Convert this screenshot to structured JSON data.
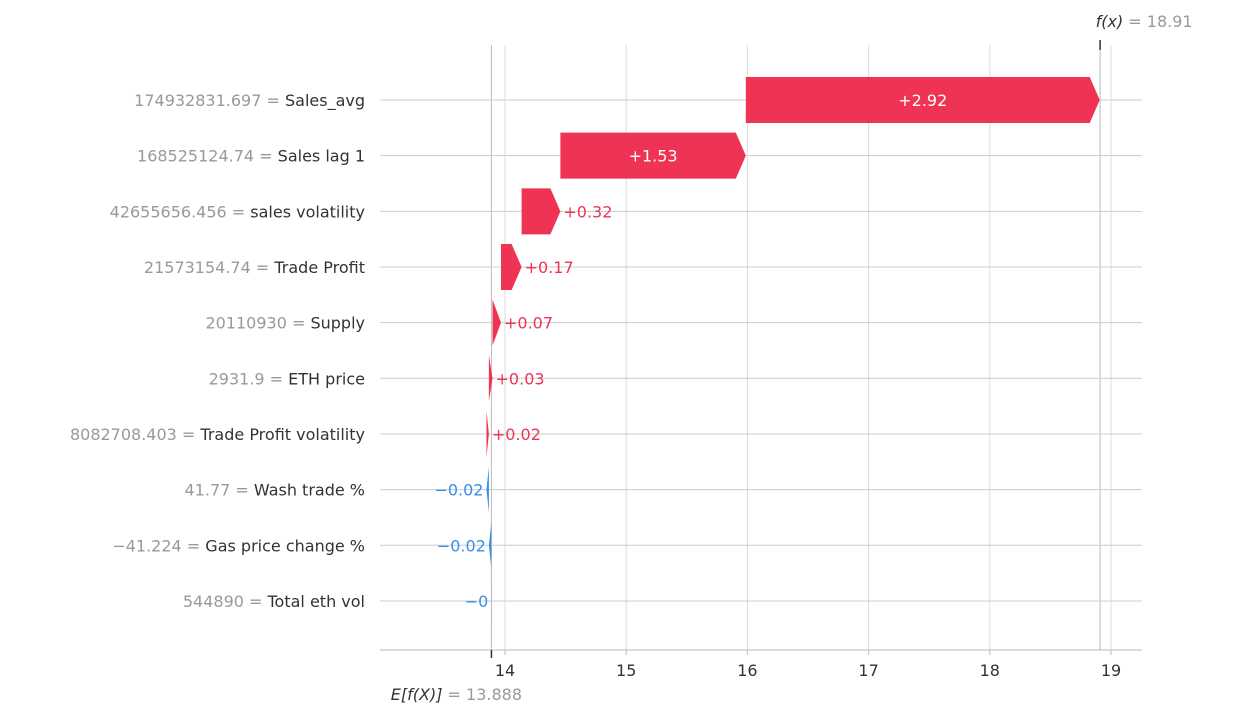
{
  "chart_data": {
    "type": "waterfall",
    "base_value": 13.888,
    "final_value": 18.91,
    "base_value_label": "13.888",
    "final_value_label": "18.91",
    "base_label_prefix": "E[f(X)]",
    "final_label_prefix": "f(x)",
    "equals": " = ",
    "xlim": [
      13.1,
      19.2
    ],
    "xticks": [
      14,
      15,
      16,
      17,
      18,
      19
    ],
    "xtick_labels": [
      "14",
      "15",
      "16",
      "17",
      "18",
      "19"
    ],
    "colors": {
      "positive": "#ee3355",
      "negative": "#3a8de8"
    },
    "features": [
      {
        "value_label": "174932831.697",
        "name": "Sales_avg",
        "contribution": 2.92,
        "contribution_label": "+2.92"
      },
      {
        "value_label": "168525124.74",
        "name": "Sales lag 1",
        "contribution": 1.53,
        "contribution_label": "+1.53"
      },
      {
        "value_label": "42655656.456",
        "name": "sales volatility",
        "contribution": 0.32,
        "contribution_label": "+0.32"
      },
      {
        "value_label": "21573154.74",
        "name": "Trade Profit",
        "contribution": 0.17,
        "contribution_label": "+0.17"
      },
      {
        "value_label": "20110930",
        "name": "Supply",
        "contribution": 0.07,
        "contribution_label": "+0.07"
      },
      {
        "value_label": "2931.9",
        "name": "ETH price",
        "contribution": 0.03,
        "contribution_label": "+0.03"
      },
      {
        "value_label": "8082708.403",
        "name": "Trade Profit volatility",
        "contribution": 0.02,
        "contribution_label": "+0.02"
      },
      {
        "value_label": "41.77",
        "name": "Wash trade %",
        "contribution": -0.02,
        "contribution_label": "−0.02"
      },
      {
        "value_label": "−41.224",
        "name": "Gas price change %",
        "contribution": -0.02,
        "contribution_label": "−0.02"
      },
      {
        "value_label": "544890",
        "name": "Total eth vol",
        "contribution": -0.001,
        "contribution_label": "−0"
      }
    ]
  }
}
